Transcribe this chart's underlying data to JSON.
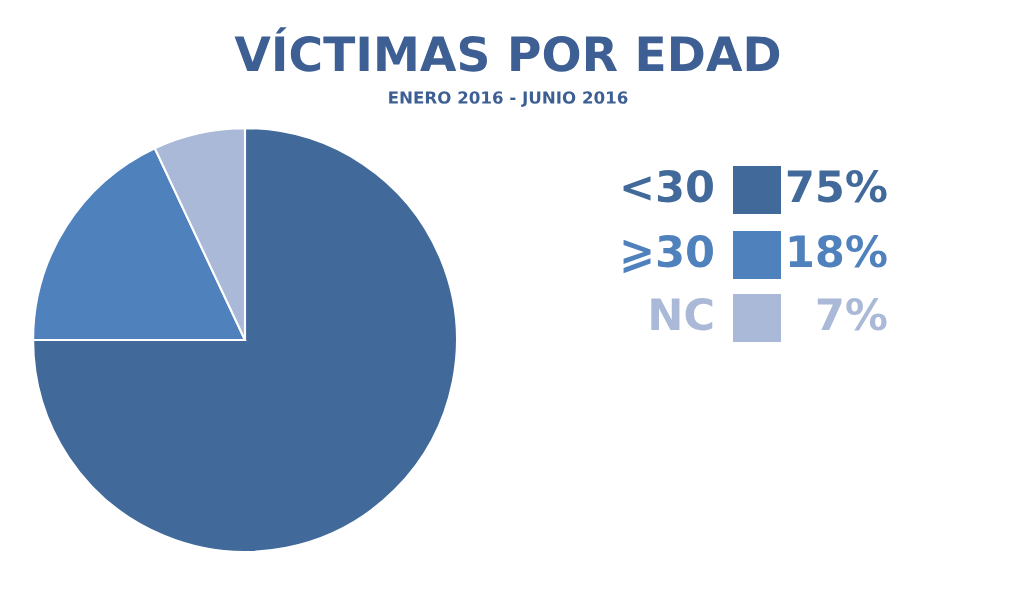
{
  "chart_data": {
    "type": "pie",
    "title": "VÍCTIMAS POR EDAD",
    "subtitle": "ENERO 2016 - JUNIO 2016",
    "categories": [
      "<30",
      "⩾30",
      "NC"
    ],
    "values": [
      75,
      18,
      7
    ],
    "colors": [
      "#416a9b",
      "#4f81bd",
      "#aab9d7"
    ],
    "value_labels": [
      "75%",
      "18%",
      "7%"
    ],
    "legend": "right"
  }
}
